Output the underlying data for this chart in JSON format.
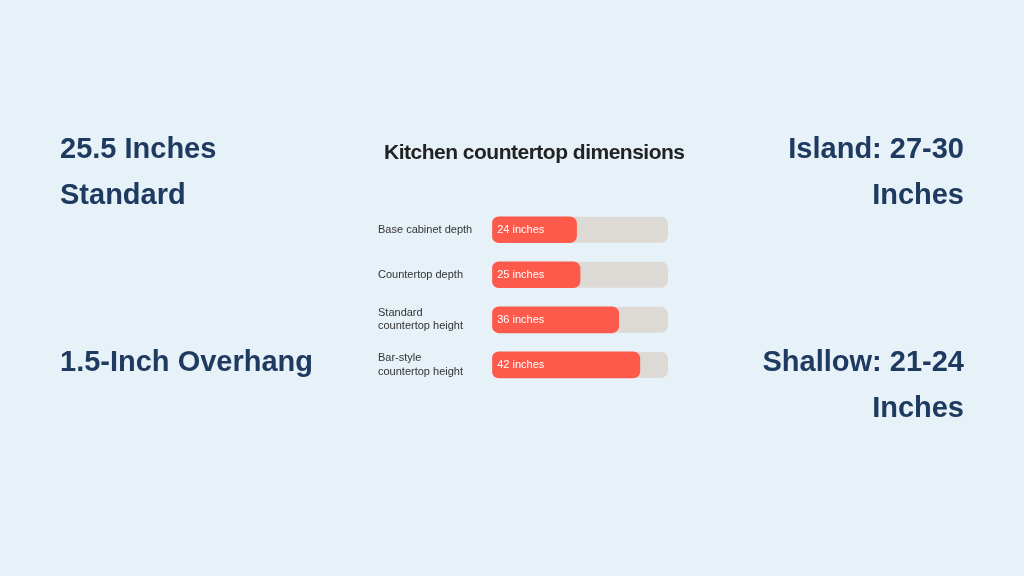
{
  "chart_data": {
    "type": "bar",
    "orientation": "horizontal",
    "title": "Kitchen countertop dimensions",
    "categories": [
      "Base cabinet depth",
      "Countertop depth",
      "Standard countertop height",
      "Bar-style countertop height"
    ],
    "values": [
      24,
      25,
      36,
      42
    ],
    "value_labels": [
      "24 inches",
      "25 inches",
      "36 inches",
      "42 inches"
    ],
    "color": "#fd5a4c",
    "xlim": [
      0,
      50
    ],
    "tick_labels": "y",
    "legend": false,
    "annotations": [
      "25.5 Inches Standard",
      "Island: 27-30 Inches",
      "1.5-Inch Overhang",
      "Shallow: 21-24 Inches"
    ]
  }
}
